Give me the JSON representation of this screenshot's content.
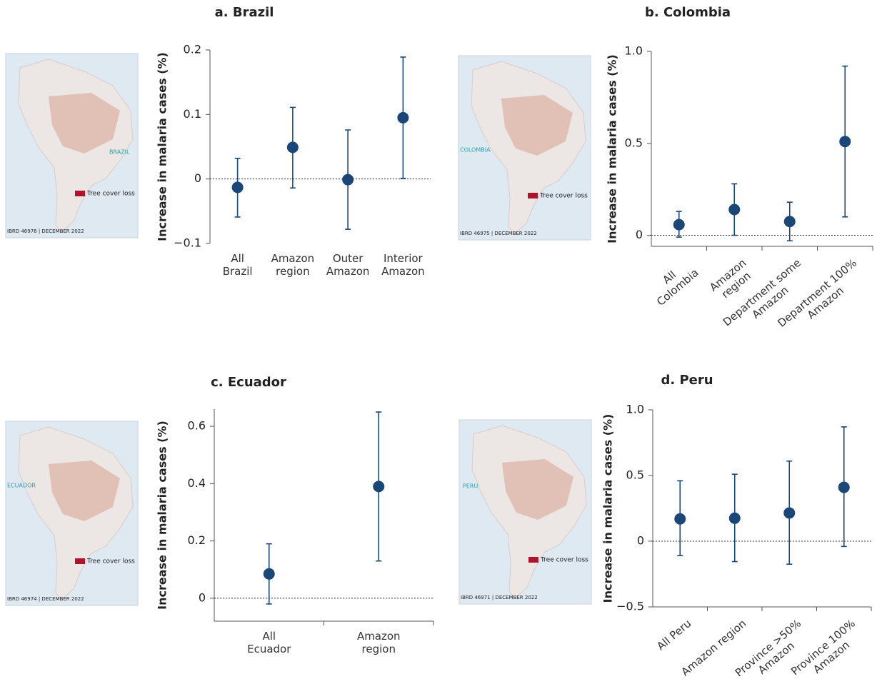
{
  "chart_data": [
    {
      "type": "errorbar",
      "title": "a. Brazil",
      "ylabel": "Increase in malaria cases (%)",
      "categories": [
        "All\nBrazil",
        "Amazon\nregion",
        "Outer\nAmazon",
        "Interior\nAmazon"
      ],
      "series": [
        {
          "color": "#1b4778",
          "values": [
            -0.013,
            0.049,
            -0.001,
            0.095
          ],
          "lower": [
            -0.059,
            -0.014,
            -0.078,
            0.001
          ],
          "upper": [
            0.032,
            0.111,
            0.076,
            0.189
          ]
        }
      ],
      "ylim": [
        -0.1,
        0.2
      ],
      "yticks": [
        {
          "value": -0.1,
          "label": "−0.1"
        },
        0,
        0.1,
        0.2
      ],
      "xaxis": false,
      "rotated_labels": false
    },
    {
      "type": "errorbar",
      "title": "b. Colombia",
      "ylabel": "Increase in malaria cases (%)",
      "categories": [
        "All\nColombia",
        "Amazon\nregion",
        "Department some\nAmazon",
        "Department 100%\nAmazon"
      ],
      "series": [
        {
          "color": "#1b4778",
          "values": [
            0.058,
            0.14,
            0.075,
            0.51
          ],
          "lower": [
            -0.01,
            0.0,
            -0.03,
            0.1
          ],
          "upper": [
            0.13,
            0.28,
            0.18,
            0.92
          ]
        }
      ],
      "ylim": [
        -0.06,
        1.0
      ],
      "yticks": [
        0,
        0.5,
        {
          "value": 1.0,
          "label": "1.0"
        }
      ],
      "xaxis": true,
      "rotated_labels": true
    },
    {
      "type": "errorbar",
      "title": "c. Ecuador",
      "ylabel": "Increase in malaria cases (%)",
      "categories": [
        "All\nEcuador",
        "Amazon\nregion"
      ],
      "series": [
        {
          "color": "#1b4778",
          "values": [
            0.085,
            0.39
          ],
          "lower": [
            -0.02,
            0.13
          ],
          "upper": [
            0.19,
            0.65
          ]
        }
      ],
      "ylim": [
        -0.08,
        0.66
      ],
      "yticks": [
        0,
        0.2,
        0.4,
        0.6
      ],
      "xaxis": true,
      "rotated_labels": false
    },
    {
      "type": "errorbar",
      "title": "d. Peru",
      "ylabel": "Increase in malaria cases (%)",
      "categories": [
        "All Peru",
        "Amazon region",
        "Province >50%\nAmazon",
        "Province 100%\nAmazon"
      ],
      "series": [
        {
          "color": "#1b4778",
          "values": [
            0.17,
            0.175,
            0.215,
            0.41
          ],
          "lower": [
            -0.11,
            -0.155,
            -0.175,
            -0.04
          ],
          "upper": [
            0.46,
            0.51,
            0.61,
            0.87
          ]
        }
      ],
      "ylim": [
        -0.5,
        1.0
      ],
      "yticks": [
        {
          "value": -0.5,
          "label": "−0.5"
        },
        0,
        0.5,
        {
          "value": 1.0,
          "label": "1.0"
        }
      ],
      "xaxis": true,
      "rotated_labels": true
    }
  ],
  "maps": [
    {
      "country": "BRAZIL",
      "legend": "Tree cover loss",
      "credit": "IBRD 46976 | DECEMBER 2022"
    },
    {
      "country": "COLOMBIA",
      "legend": "Tree cover loss",
      "credit": "IBRD 46975 | DECEMBER 2022"
    },
    {
      "country": "ECUADOR",
      "legend": "Tree cover loss",
      "credit": "IBRD 46974 | DECEMBER 2022"
    },
    {
      "country": "PERU",
      "legend": "Tree cover loss",
      "credit": "IBRD 46971 | DECEMBER 2022"
    }
  ]
}
